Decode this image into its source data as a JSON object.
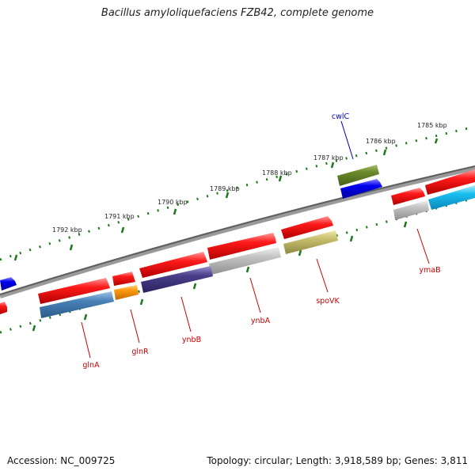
{
  "title": "Bacillus amyloliquefaciens FZB42, complete genome",
  "footer": {
    "accession": "Accession: NC_009725",
    "topology": "Topology: circular; Length: 3,918,589 bp; Genes: 3,811"
  },
  "colors": {
    "backbone": "#7a7a7a",
    "scale_dots": "#1a7a1a",
    "label_red": "#cc0000",
    "label_blue": "#0000cc"
  },
  "scale_ticks": [
    {
      "label": "1785 kbp"
    },
    {
      "label": "1786 kbp"
    },
    {
      "label": "1787 kbp"
    },
    {
      "label": "1788 kbp"
    },
    {
      "label": "1789 kbp"
    },
    {
      "label": "1790 kbp"
    },
    {
      "label": "1791 kbp"
    },
    {
      "label": "1792 kbp"
    }
  ],
  "gene_labels": [
    {
      "text": "cwlC",
      "color": "blue"
    },
    {
      "text": "ymaB",
      "color": "red"
    },
    {
      "text": "spoVK",
      "color": "red"
    },
    {
      "text": "ynbA",
      "color": "red"
    },
    {
      "text": "ynbB",
      "color": "red"
    },
    {
      "text": "glnR",
      "color": "red"
    },
    {
      "text": "glnA",
      "color": "red"
    }
  ]
}
